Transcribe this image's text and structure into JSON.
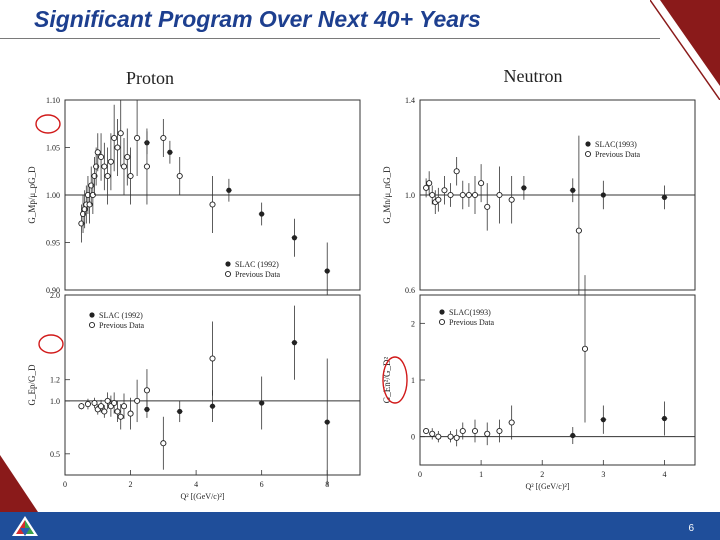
{
  "slide": {
    "title": "Significant Program Over Next 40+ Years",
    "page_number": "6"
  },
  "colors": {
    "title": "#1d3f8f",
    "bar": "#1f4e9a",
    "highlight": "#d11a1a",
    "deco": "#8a1a1a"
  },
  "chart_data": [
    {
      "id": "proton_gm",
      "type": "scatter",
      "header": "Proton",
      "ylabel": "G_Mp/μ_pG_D",
      "xlim": [
        0,
        9
      ],
      "ylim": [
        0.9,
        1.1
      ],
      "yticks": [
        "0.90",
        "0.95",
        "1.00",
        "1.05",
        "1.10"
      ],
      "ytick_values": [
        0.9,
        0.95,
        1.0,
        1.05,
        1.1
      ],
      "reference_line": 1.0,
      "legend": [
        "SLAC (1992)",
        "Previous Data"
      ],
      "series": [
        {
          "name": "SLAC (1992)",
          "marker": "filled",
          "points": [
            [
              2.5,
              1.055
            ],
            [
              3.2,
              1.045
            ],
            [
              5.0,
              1.005
            ],
            [
              6.0,
              0.98
            ],
            [
              7.0,
              0.955
            ],
            [
              8.0,
              0.92
            ]
          ],
          "err": [
            0.012,
            0.012,
            0.012,
            0.012,
            0.02,
            0.03
          ]
        },
        {
          "name": "Previous Data",
          "marker": "open",
          "points": [
            [
              0.5,
              0.97
            ],
            [
              0.55,
              0.98
            ],
            [
              0.6,
              0.985
            ],
            [
              0.65,
              0.99
            ],
            [
              0.7,
              1.0
            ],
            [
              0.75,
              0.99
            ],
            [
              0.8,
              1.01
            ],
            [
              0.85,
              1.0
            ],
            [
              0.9,
              1.02
            ],
            [
              0.95,
              1.03
            ],
            [
              1.0,
              1.045
            ],
            [
              1.1,
              1.04
            ],
            [
              1.2,
              1.03
            ],
            [
              1.3,
              1.02
            ],
            [
              1.4,
              1.035
            ],
            [
              1.5,
              1.06
            ],
            [
              1.6,
              1.05
            ],
            [
              1.7,
              1.065
            ],
            [
              1.8,
              1.03
            ],
            [
              1.9,
              1.04
            ],
            [
              2.0,
              1.02
            ],
            [
              2.2,
              1.06
            ],
            [
              2.5,
              1.03
            ],
            [
              3.0,
              1.06
            ],
            [
              3.5,
              1.02
            ],
            [
              4.5,
              0.99
            ]
          ],
          "err": [
            0.02,
            0.02,
            0.02,
            0.02,
            0.02,
            0.02,
            0.02,
            0.02,
            0.02,
            0.02,
            0.02,
            0.025,
            0.025,
            0.03,
            0.03,
            0.035,
            0.03,
            0.035,
            0.03,
            0.03,
            0.03,
            0.04,
            0.04,
            0.02,
            0.02,
            0.03
          ]
        }
      ]
    },
    {
      "id": "neutron_gm",
      "type": "scatter",
      "header": "Neutron",
      "ylabel": "G_Mn/μ_nG_D",
      "xlim": [
        0,
        4.5
      ],
      "ylim": [
        0.6,
        1.4
      ],
      "yticks": [
        "1.4",
        "1.0",
        "0.6"
      ],
      "ytick_values": [
        1.4,
        1.0,
        0.6
      ],
      "reference_line": 1.0,
      "legend": [
        "SLAC(1993)",
        "Previous Data"
      ],
      "series": [
        {
          "name": "SLAC(1993)",
          "marker": "filled",
          "points": [
            [
              1.7,
              1.03
            ],
            [
              2.5,
              1.02
            ],
            [
              3.0,
              1.0
            ],
            [
              4.0,
              0.99
            ]
          ],
          "err": [
            0.05,
            0.05,
            0.06,
            0.05
          ]
        },
        {
          "name": "Previous Data",
          "marker": "open",
          "points": [
            [
              0.1,
              1.03
            ],
            [
              0.15,
              1.05
            ],
            [
              0.2,
              1.0
            ],
            [
              0.25,
              0.97
            ],
            [
              0.3,
              0.98
            ],
            [
              0.4,
              1.02
            ],
            [
              0.5,
              1.0
            ],
            [
              0.6,
              1.1
            ],
            [
              0.7,
              1.0
            ],
            [
              0.8,
              1.0
            ],
            [
              0.9,
              1.0
            ],
            [
              1.0,
              1.05
            ],
            [
              1.1,
              0.95
            ],
            [
              1.3,
              1.0
            ],
            [
              1.5,
              0.98
            ],
            [
              2.6,
              0.85
            ]
          ],
          "err": [
            0.04,
            0.05,
            0.04,
            0.05,
            0.05,
            0.06,
            0.05,
            0.06,
            0.06,
            0.05,
            0.08,
            0.08,
            0.1,
            0.12,
            0.1,
            0.4
          ]
        }
      ]
    },
    {
      "id": "proton_ge",
      "type": "scatter",
      "ylabel": "G_Ep/G_D",
      "xlabel": "Q² [(GeV/c)²]",
      "xlim": [
        0,
        9
      ],
      "xticks": [
        "0",
        "2",
        "4",
        "6",
        "8"
      ],
      "xtick_values": [
        0,
        2,
        4,
        6,
        8
      ],
      "ylim": [
        0.3,
        2.0
      ],
      "yticks": [
        "2.0",
        "1.2",
        "1.0",
        "0.5"
      ],
      "ytick_values": [
        2.0,
        1.2,
        1.0,
        0.5
      ],
      "reference_line": 1.0,
      "legend": [
        "SLAC (1992)",
        "Previous Data"
      ],
      "series": [
        {
          "name": "SLAC (1992)",
          "marker": "filled",
          "points": [
            [
              2.5,
              0.92
            ],
            [
              3.5,
              0.9
            ],
            [
              4.5,
              0.95
            ],
            [
              6.0,
              0.98
            ],
            [
              7.0,
              1.55
            ],
            [
              8.0,
              0.8
            ]
          ],
          "err": [
            0.08,
            0.1,
            0.15,
            0.25,
            0.35,
            0.6
          ]
        },
        {
          "name": "Previous Data",
          "marker": "open",
          "points": [
            [
              0.5,
              0.95
            ],
            [
              0.7,
              0.97
            ],
            [
              0.9,
              0.98
            ],
            [
              1.0,
              0.92
            ],
            [
              1.1,
              0.95
            ],
            [
              1.2,
              0.9
            ],
            [
              1.3,
              1.0
            ],
            [
              1.4,
              0.95
            ],
            [
              1.5,
              0.98
            ],
            [
              1.6,
              0.9
            ],
            [
              1.7,
              0.85
            ],
            [
              1.8,
              0.95
            ],
            [
              2.0,
              0.88
            ],
            [
              2.2,
              1.0
            ],
            [
              2.5,
              1.1
            ],
            [
              3.0,
              0.6
            ],
            [
              4.5,
              1.4
            ]
          ],
          "err": [
            0.03,
            0.05,
            0.05,
            0.05,
            0.06,
            0.06,
            0.08,
            0.1,
            0.1,
            0.1,
            0.12,
            0.12,
            0.15,
            0.2,
            0.2,
            0.25,
            0.35
          ]
        }
      ]
    },
    {
      "id": "neutron_ge",
      "type": "scatter",
      "ylabel": "G_En²/G_D²",
      "xlabel": "Q² [(GeV/c)²]",
      "xlim": [
        0,
        4.5
      ],
      "xticks": [
        "0",
        "1",
        "2",
        "3",
        "4"
      ],
      "xtick_values": [
        0,
        1,
        2,
        3,
        4
      ],
      "ylim": [
        -0.5,
        2.5
      ],
      "yticks": [
        "2",
        "1",
        "0"
      ],
      "ytick_values": [
        2,
        1,
        0
      ],
      "reference_line": 0,
      "legend": [
        "SLAC(1993)",
        "Previous Data"
      ],
      "series": [
        {
          "name": "SLAC(1993)",
          "marker": "filled",
          "points": [
            [
              2.5,
              0.02
            ],
            [
              3.0,
              0.3
            ],
            [
              4.0,
              0.32
            ]
          ],
          "err": [
            0.15,
            0.25,
            0.3
          ]
        },
        {
          "name": "Previous Data",
          "marker": "open",
          "points": [
            [
              0.1,
              0.1
            ],
            [
              0.2,
              0.05
            ],
            [
              0.3,
              0.0
            ],
            [
              0.5,
              0.0
            ],
            [
              0.6,
              -0.02
            ],
            [
              0.7,
              0.1
            ],
            [
              0.9,
              0.1
            ],
            [
              1.1,
              0.05
            ],
            [
              1.3,
              0.1
            ],
            [
              1.5,
              0.25
            ],
            [
              2.7,
              1.55
            ]
          ],
          "err": [
            0.05,
            0.1,
            0.1,
            0.1,
            0.15,
            0.15,
            0.2,
            0.2,
            0.2,
            0.3,
            1.3
          ]
        }
      ]
    }
  ]
}
